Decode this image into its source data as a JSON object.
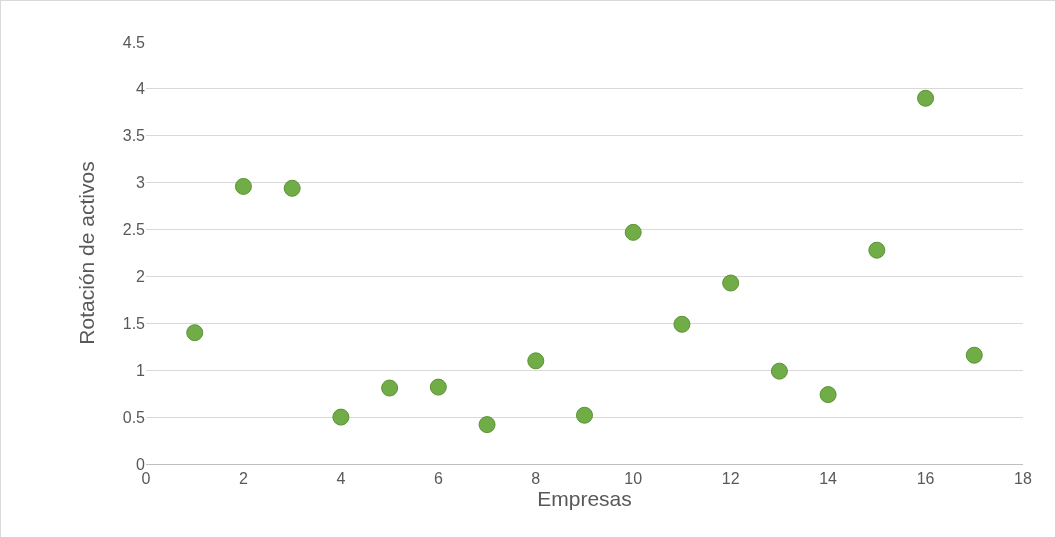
{
  "chart_data": {
    "type": "scatter",
    "xlabel": "Empresas",
    "ylabel": "Rotación de activos",
    "x": [
      1,
      2,
      3,
      4,
      5,
      6,
      7,
      8,
      9,
      10,
      11,
      12,
      13,
      14,
      15,
      16,
      17
    ],
    "series": [
      {
        "color": "#70ad47",
        "values": [
          1.4,
          2.96,
          2.94,
          0.5,
          0.81,
          0.82,
          0.42,
          1.1,
          0.52,
          2.47,
          1.49,
          1.93,
          0.99,
          0.74,
          2.28,
          3.9,
          1.16
        ]
      }
    ],
    "xlim": [
      0,
      18
    ],
    "xticks": [
      0,
      2,
      4,
      6,
      8,
      10,
      12,
      14,
      16,
      18
    ],
    "ylim": [
      0,
      4.5
    ],
    "yticks": [
      0,
      0.5,
      1,
      1.5,
      2,
      2.5,
      3,
      3.5,
      4,
      4.5
    ],
    "grid": "y",
    "marker": "circle"
  }
}
